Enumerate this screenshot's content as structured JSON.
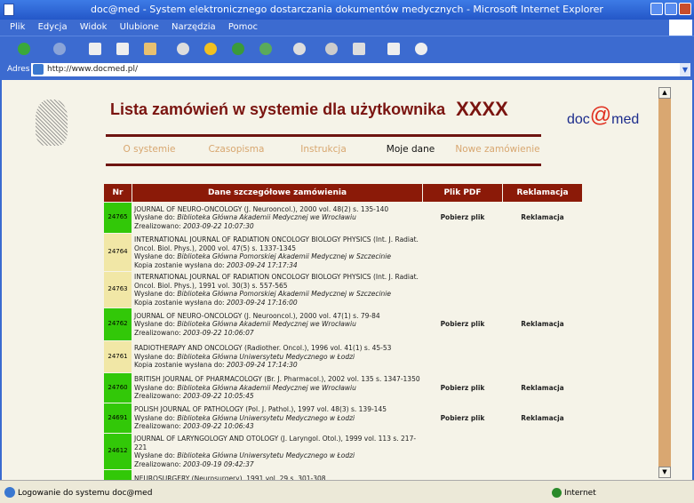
{
  "window": {
    "title": "doc@med - System elektronicznego dostarczania dokumentów medycznych - Microsoft Internet Explorer"
  },
  "menu": [
    "Plik",
    "Edycja",
    "Widok",
    "Ulubione",
    "Narzędzia",
    "Pomoc"
  ],
  "address": {
    "label": "Adres",
    "url": "http://www.docmed.pl/"
  },
  "page": {
    "title": "Lista zamówień w systemie dla użytkownika",
    "user": "XXXX",
    "logo": {
      "doc": "doc",
      "at": "@",
      "med": "med"
    }
  },
  "nav": [
    {
      "label": "O systemie"
    },
    {
      "label": "Czasopisma"
    },
    {
      "label": "Instrukcja"
    },
    {
      "label": "Moje dane",
      "active": true
    },
    {
      "label": "Nowe zamówienie"
    }
  ],
  "table": {
    "headers": [
      "Nr",
      "Dane szczegółowe zamówienia",
      "Plik PDF",
      "Reklamacja"
    ],
    "rows": [
      {
        "nr": "24765",
        "status": "green",
        "line1": "JOURNAL OF NEURO-ONCOLOGY (J. Neurooncol.), 2000 vol. 48(2) s. 135-140",
        "sent_label": "Wysłane do:",
        "sent_to": "Biblioteka Główna Akademii Medycznej we Wrocławiu",
        "date_label": "Zrealizowano:",
        "date": "2003-09-22 10:07:30",
        "pdf": "Pobierz plik",
        "complaint": "Reklamacja"
      },
      {
        "nr": "24764",
        "status": "yellow",
        "line1": "INTERNATIONAL JOURNAL OF RADIATION ONCOLOGY BIOLOGY PHYSICS (Int. J. Radiat. Oncol. Biol. Phys.), 2000 vol. 47(5) s. 1337-1345",
        "sent_label": "Wysłane do:",
        "sent_to": "Biblioteka Główna Pomorskiej Akademii Medycznej w Szczecinie",
        "date_label": "Kopia zostanie wysłana do:",
        "date": "2003-09-24 17:17:34",
        "pdf": "",
        "complaint": ""
      },
      {
        "nr": "24763",
        "status": "yellow",
        "line1": "INTERNATIONAL JOURNAL OF RADIATION ONCOLOGY BIOLOGY PHYSICS (Int. J. Radiat. Oncol. Biol. Phys.), 1991 vol. 30(3) s. 557-565",
        "sent_label": "Wysłane do:",
        "sent_to": "Biblioteka Główna Pomorskiej Akademii Medycznej w Szczecinie",
        "date_label": "Kopia zostanie wysłana do:",
        "date": "2003-09-24 17:16:00",
        "pdf": "",
        "complaint": ""
      },
      {
        "nr": "24762",
        "status": "green",
        "line1": "JOURNAL OF NEURO-ONCOLOGY (J. Neurooncol.), 2000 vol. 47(1) s. 79-84",
        "sent_label": "Wysłane do:",
        "sent_to": "Biblioteka Główna Akademii Medycznej we Wrocławiu",
        "date_label": "Zrealizowano:",
        "date": "2003-09-22 10:06:07",
        "pdf": "Pobierz plik",
        "complaint": "Reklamacja"
      },
      {
        "nr": "24761",
        "status": "yellow",
        "line1": "RADIOTHERAPY AND ONCOLOGY (Radiother. Oncol.), 1996 vol. 41(1) s. 45-53",
        "sent_label": "Wysłane do:",
        "sent_to": "Biblioteka Główna Uniwersytetu Medycznego w Łodzi",
        "date_label": "Kopia zostanie wysłana do:",
        "date": "2003-09-24 17:14:30",
        "pdf": "",
        "complaint": ""
      },
      {
        "nr": "24760",
        "status": "green",
        "line1": "BRITISH JOURNAL OF PHARMACOLOGY (Br. J. Pharmacol.), 2002 vol. 135 s. 1347-1350",
        "sent_label": "Wysłane do:",
        "sent_to": "Biblioteka Główna Akademii Medycznej we Wrocławiu",
        "date_label": "Zrealizowano:",
        "date": "2003-09-22 10:05:45",
        "pdf": "Pobierz plik",
        "complaint": "Reklamacja"
      },
      {
        "nr": "24691",
        "status": "green",
        "line1": "POLISH JOURNAL OF PATHOLOGY (Pol. J. Pathol.), 1997 vol. 48(3) s. 139-145",
        "sent_label": "Wysłane do:",
        "sent_to": "Biblioteka Główna Uniwersytetu Medycznego w Łodzi",
        "date_label": "Zrealizowano:",
        "date": "2003-09-22 10:06:43",
        "pdf": "Pobierz plik",
        "complaint": "Reklamacja"
      },
      {
        "nr": "24612",
        "status": "green",
        "line1": "JOURNAL OF LARYNGOLOGY AND OTOLOGY (J. Laryngol. Otol.), 1999 vol. 113 s. 217-221",
        "sent_label": "Wysłane do:",
        "sent_to": "Biblioteka Główna Uniwersytetu Medycznego w Łodzi",
        "date_label": "Zrealizowano:",
        "date": "2003-09-19 09:42:37",
        "pdf": "",
        "complaint": ""
      },
      {
        "nr": "",
        "status": "green",
        "line1": "NEUROSURGERY (Neurosurgery), 1991 vol. 29 s. 301-308",
        "sent_label": "",
        "sent_to": "",
        "date_label": "",
        "date": "",
        "pdf": "",
        "complaint": ""
      }
    ]
  },
  "status": {
    "message": "Logowanie do systemu doc@med",
    "zone": "Internet"
  },
  "colors": {
    "accent": "#8b1a08",
    "done": "#32c808",
    "pending": "#f1e7a6",
    "nav": "#d8a770"
  }
}
